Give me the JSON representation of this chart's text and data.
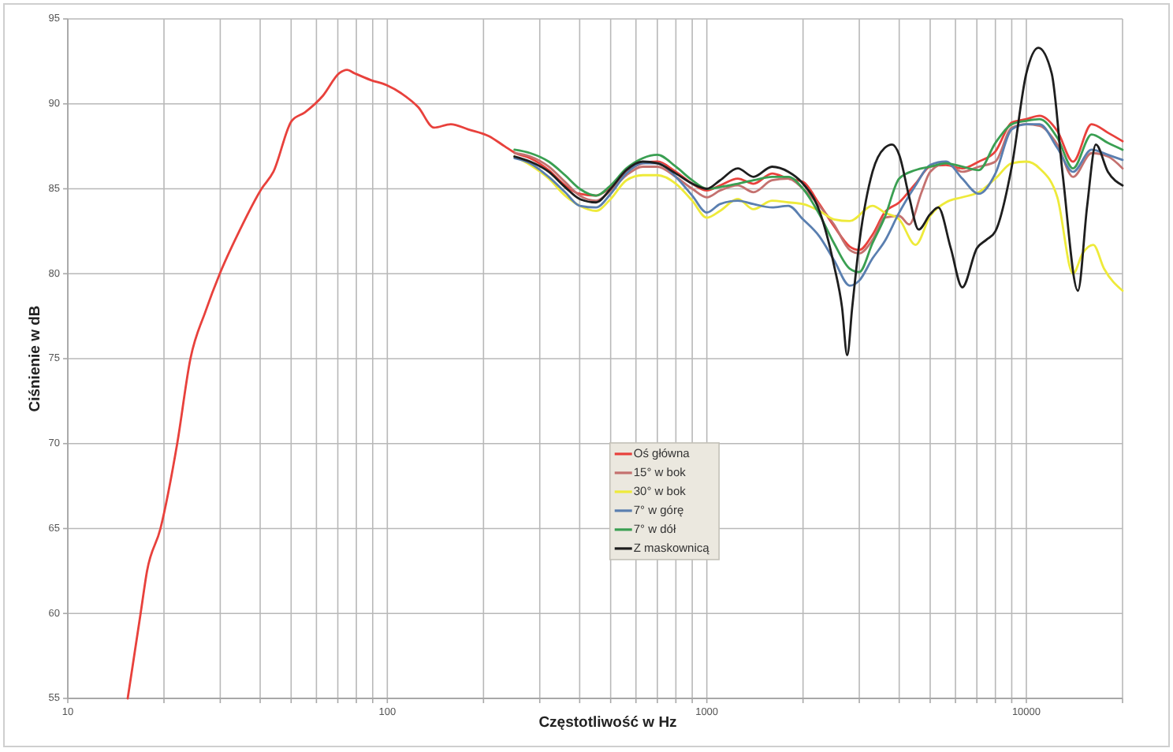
{
  "chart_data": {
    "type": "line",
    "xlabel": "Częstotliwość w Hz",
    "ylabel": "Ciśnienie w dB",
    "log": "x",
    "xlim": [
      10,
      20000
    ],
    "ylim": [
      55,
      95
    ],
    "xticks": [
      10,
      {
        "value": 20,
        "label": null
      },
      {
        "value": 30,
        "label": null
      },
      {
        "value": 40,
        "label": null
      },
      {
        "value": 50,
        "label": null
      },
      {
        "value": 60,
        "label": null
      },
      {
        "value": 70,
        "label": null
      },
      {
        "value": 80,
        "label": null
      },
      {
        "value": 90,
        "label": null
      },
      100,
      {
        "value": 200,
        "label": null
      },
      {
        "value": 300,
        "label": null
      },
      {
        "value": 400,
        "label": null
      },
      {
        "value": 500,
        "label": null
      },
      {
        "value": 600,
        "label": null
      },
      {
        "value": 700,
        "label": null
      },
      {
        "value": 800,
        "label": null
      },
      {
        "value": 900,
        "label": null
      },
      1000,
      {
        "value": 2000,
        "label": null
      },
      {
        "value": 3000,
        "label": null
      },
      {
        "value": 4000,
        "label": null
      },
      {
        "value": 5000,
        "label": null
      },
      {
        "value": 6000,
        "label": null
      },
      {
        "value": 7000,
        "label": null
      },
      {
        "value": 8000,
        "label": null
      },
      {
        "value": 9000,
        "label": null
      },
      10000,
      {
        "value": 20000,
        "label": null
      }
    ],
    "yticks": [
      55,
      60,
      65,
      70,
      75,
      80,
      85,
      90,
      95
    ],
    "grid": true,
    "legend": "center",
    "line_style": "solid",
    "series": [
      {
        "name": "Oś główna",
        "color": "#e8413c",
        "x": [
          15.4,
          16.9,
          17.7,
          19.5,
          22,
          24.2,
          27,
          29.9,
          34.4,
          40.4,
          44,
          50.2,
          55.2,
          63,
          70.7,
          74.8,
          79,
          88.8,
          99.5,
          111,
          125,
          140,
          158,
          179,
          208,
          233,
          252,
          280,
          320,
          360,
          400,
          450,
          500,
          560,
          630,
          700,
          800,
          900,
          1000,
          1100,
          1250,
          1400,
          1600,
          1800,
          2000,
          2250,
          2500,
          2800,
          3000,
          3300,
          3600,
          4000,
          4500,
          5000,
          5600,
          6300,
          7100,
          8000,
          9000,
          10000,
          11000,
          12500,
          14000,
          16000,
          18000,
          20000
        ],
        "values": [
          55,
          60,
          62.5,
          65,
          70,
          75,
          77.8,
          80,
          82.5,
          85,
          86,
          89,
          89.5,
          90.5,
          91.8,
          92,
          91.8,
          91.4,
          91.1,
          90.6,
          89.8,
          88.6,
          88.8,
          88.5,
          88.1,
          87.5,
          87.1,
          86.8,
          86.1,
          85.2,
          84.7,
          84.6,
          85.1,
          86.0,
          86.5,
          86.6,
          86.0,
          85.3,
          84.9,
          85.2,
          85.6,
          85.3,
          85.9,
          85.6,
          85.4,
          84.1,
          82.8,
          81.6,
          81.4,
          82.3,
          83.6,
          84.2,
          85.3,
          86.3,
          86.4,
          86.2,
          86.6,
          87.2,
          88.9,
          89.1,
          89.3,
          88.4,
          86.6,
          88.8,
          88.3,
          87.8
        ]
      },
      {
        "name": "15° w bok",
        "color": "#c4716f",
        "x": [
          250,
          280,
          320,
          360,
          400,
          450,
          500,
          560,
          630,
          700,
          800,
          900,
          1000,
          1100,
          1250,
          1400,
          1600,
          1800,
          2000,
          2250,
          2500,
          2800,
          3000,
          3300,
          3600,
          4000,
          4300,
          4700,
          5000,
          5600,
          6300,
          7100,
          8000,
          9000,
          10000,
          11000,
          12500,
          14000,
          16000,
          18000,
          20000
        ],
        "values": [
          87.1,
          86.9,
          86.3,
          85.4,
          84.6,
          84.3,
          84.9,
          85.8,
          86.3,
          86.3,
          85.7,
          85.0,
          84.5,
          84.9,
          85.2,
          84.8,
          85.5,
          85.6,
          85.0,
          84.0,
          82.9,
          81.4,
          81.2,
          82.0,
          83.3,
          83.4,
          82.9,
          84.8,
          86.0,
          86.5,
          86.0,
          86.3,
          86.6,
          88.6,
          88.8,
          88.7,
          87.6,
          85.7,
          87.1,
          86.9,
          86.2
        ]
      },
      {
        "name": "30° w bok",
        "color": "#eeea3a",
        "x": [
          250,
          280,
          320,
          360,
          400,
          450,
          500,
          560,
          630,
          700,
          800,
          900,
          1000,
          1100,
          1250,
          1400,
          1600,
          1800,
          2000,
          2250,
          2500,
          2800,
          3300,
          3600,
          4000,
          4500,
          5000,
          5600,
          6300,
          7100,
          8000,
          9000,
          10000,
          11000,
          12500,
          14000,
          15000,
          16200,
          17500,
          20000
        ],
        "values": [
          86.9,
          86.4,
          85.6,
          84.6,
          84.0,
          83.7,
          84.4,
          85.5,
          85.8,
          85.8,
          85.3,
          84.3,
          83.3,
          83.7,
          84.4,
          83.8,
          84.3,
          84.2,
          84.1,
          83.7,
          83.2,
          83.1,
          84.0,
          83.6,
          83.2,
          81.7,
          83.4,
          84.2,
          84.5,
          84.8,
          85.6,
          86.5,
          86.6,
          86.2,
          84.5,
          80.0,
          81.2,
          81.7,
          80.3,
          79.0
        ]
      },
      {
        "name": "7° w górę",
        "color": "#5a7fb0",
        "x": [
          250,
          280,
          320,
          360,
          400,
          450,
          500,
          560,
          630,
          700,
          800,
          900,
          1000,
          1100,
          1250,
          1400,
          1600,
          1800,
          2000,
          2250,
          2500,
          2800,
          3000,
          3300,
          3600,
          4000,
          4500,
          5000,
          5600,
          6300,
          7100,
          8000,
          9000,
          10000,
          11000,
          12500,
          14000,
          16000,
          18000,
          20000
        ],
        "values": [
          86.8,
          86.5,
          85.7,
          84.8,
          84.0,
          83.9,
          84.7,
          85.9,
          86.5,
          86.5,
          85.7,
          84.6,
          83.6,
          84.1,
          84.3,
          84.1,
          83.9,
          84.0,
          83.2,
          82.2,
          80.8,
          79.3,
          79.6,
          80.9,
          81.9,
          83.6,
          85.2,
          86.4,
          86.6,
          85.6,
          84.7,
          85.9,
          88.5,
          88.8,
          88.8,
          87.4,
          86.0,
          87.3,
          87.0,
          86.7
        ]
      },
      {
        "name": "7° w dół",
        "color": "#3a9f52",
        "x": [
          250,
          280,
          320,
          360,
          400,
          450,
          500,
          560,
          630,
          700,
          800,
          900,
          1000,
          1100,
          1250,
          1400,
          1600,
          1800,
          2000,
          2250,
          2500,
          2800,
          3000,
          3300,
          3600,
          4000,
          4500,
          5000,
          5600,
          6300,
          7100,
          8000,
          9000,
          10000,
          11000,
          12500,
          14000,
          16000,
          18000,
          20000
        ],
        "values": [
          87.3,
          87.1,
          86.6,
          85.8,
          85.0,
          84.6,
          85.2,
          86.2,
          86.8,
          87.0,
          86.3,
          85.5,
          85.0,
          85.1,
          85.3,
          85.5,
          85.7,
          85.7,
          85.0,
          83.5,
          81.8,
          80.3,
          80.1,
          81.8,
          83.3,
          85.6,
          86.1,
          86.3,
          86.5,
          86.3,
          86.1,
          87.7,
          88.8,
          89.0,
          89.1,
          88.0,
          86.2,
          88.2,
          87.7,
          87.3
        ]
      },
      {
        "name": "Z maskownicą",
        "color": "#1e1e1e",
        "x": [
          250,
          280,
          320,
          360,
          400,
          450,
          500,
          560,
          630,
          700,
          800,
          900,
          1000,
          1100,
          1250,
          1400,
          1600,
          1800,
          2000,
          2250,
          2500,
          2650,
          2750,
          2850,
          3000,
          3300,
          3600,
          3800,
          4000,
          4300,
          4600,
          5000,
          5300,
          5800,
          6300,
          7000,
          7500,
          8000,
          9000,
          10000,
          10900,
          12000,
          13000,
          14500,
          15500,
          16500,
          18000,
          20000
        ],
        "values": [
          86.9,
          86.6,
          86.0,
          85.1,
          84.4,
          84.2,
          85.0,
          86.1,
          86.6,
          86.5,
          85.9,
          85.3,
          85.0,
          85.5,
          86.2,
          85.7,
          86.3,
          86.0,
          85.3,
          83.7,
          80.5,
          78.0,
          75.2,
          78.0,
          81.8,
          86.0,
          87.4,
          87.6,
          87.0,
          84.5,
          82.6,
          83.5,
          83.9,
          81.5,
          79.2,
          81.5,
          82.0,
          82.5,
          86.3,
          91.8,
          93.3,
          91.8,
          85.8,
          79.0,
          84.0,
          87.6,
          86.0,
          85.2
        ]
      }
    ]
  }
}
